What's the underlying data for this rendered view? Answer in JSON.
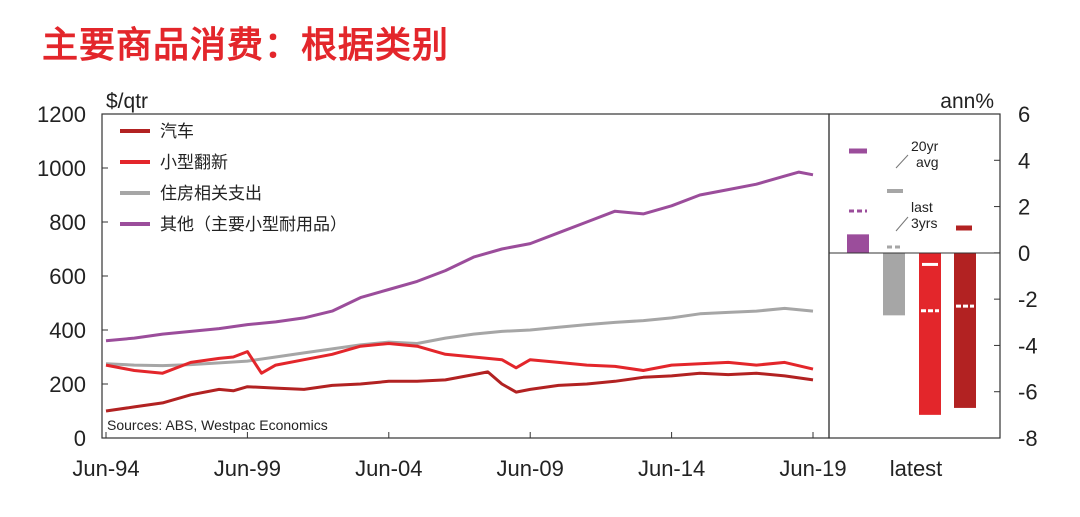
{
  "title": "主要商品消费：根据类别",
  "chart_data": [
    {
      "type": "line",
      "ylabel": "$/qtr",
      "ylim": [
        0,
        1200
      ],
      "yticks": [
        0,
        200,
        400,
        600,
        800,
        1000,
        1200
      ],
      "xticks": [
        "Jun-94",
        "Jun-99",
        "Jun-04",
        "Jun-09",
        "Jun-14",
        "Jun-19"
      ],
      "xlim": [
        1994.5,
        2019.5
      ],
      "grid": false,
      "legend_position": "top-left",
      "source": "Sources: ABS, Westpac Economics",
      "series": [
        {
          "name": "汽车",
          "color": "#b22222",
          "x": [
            1994.5,
            1995.5,
            1996.5,
            1997.5,
            1998.5,
            1999.0,
            1999.5,
            2000.5,
            2001.5,
            2002.5,
            2003.5,
            2004.5,
            2005.5,
            2006.5,
            2007.5,
            2008.0,
            2008.5,
            2009.0,
            2009.5,
            2010.5,
            2011.5,
            2012.5,
            2013.5,
            2014.5,
            2015.5,
            2016.5,
            2017.5,
            2018.5,
            2019.5
          ],
          "y": [
            100,
            115,
            130,
            160,
            180,
            175,
            190,
            185,
            180,
            195,
            200,
            210,
            210,
            215,
            235,
            245,
            200,
            170,
            180,
            195,
            200,
            210,
            225,
            230,
            240,
            235,
            240,
            230,
            215
          ]
        },
        {
          "name": "小型翻新",
          "color": "#e3262b",
          "x": [
            1994.5,
            1995.5,
            1996.5,
            1997.5,
            1998.5,
            1999.0,
            1999.5,
            2000.0,
            2000.5,
            2001.5,
            2002.5,
            2003.5,
            2004.5,
            2005.5,
            2006.5,
            2007.5,
            2008.5,
            2009.0,
            2009.5,
            2010.5,
            2011.5,
            2012.5,
            2013.5,
            2014.5,
            2015.5,
            2016.5,
            2017.5,
            2018.5,
            2019.5
          ],
          "y": [
            270,
            250,
            240,
            280,
            295,
            300,
            320,
            240,
            270,
            290,
            310,
            340,
            350,
            340,
            310,
            300,
            290,
            260,
            290,
            280,
            270,
            265,
            250,
            270,
            275,
            280,
            270,
            280,
            255
          ]
        },
        {
          "name": "住房相关支出",
          "color": "#a6a6a6",
          "x": [
            1994.5,
            1995.5,
            1996.5,
            1997.5,
            1998.5,
            1999.5,
            2000.5,
            2001.5,
            2002.5,
            2003.5,
            2004.5,
            2005.5,
            2006.5,
            2007.5,
            2008.5,
            2009.5,
            2010.5,
            2011.5,
            2012.5,
            2013.5,
            2014.5,
            2015.5,
            2016.5,
            2017.5,
            2018.5,
            2019.5
          ],
          "y": [
            275,
            270,
            268,
            272,
            278,
            285,
            300,
            315,
            330,
            345,
            355,
            350,
            370,
            385,
            395,
            400,
            410,
            420,
            428,
            435,
            445,
            460,
            465,
            470,
            480,
            470
          ]
        },
        {
          "name": "其他（主要小型耐用品）",
          "color": "#9b4d9b",
          "x": [
            1994.5,
            1995.5,
            1996.5,
            1997.5,
            1998.5,
            1999.5,
            2000.5,
            2001.5,
            2002.5,
            2003.5,
            2004.5,
            2005.5,
            2006.5,
            2007.5,
            2008.5,
            2009.5,
            2010.5,
            2011.5,
            2012.5,
            2013.5,
            2014.5,
            2015.5,
            2016.5,
            2017.5,
            2018.5,
            2019.0,
            2019.5
          ],
          "y": [
            360,
            370,
            385,
            395,
            405,
            420,
            430,
            445,
            470,
            520,
            550,
            580,
            620,
            670,
            700,
            720,
            760,
            800,
            840,
            830,
            860,
            900,
            920,
            940,
            970,
            985,
            975
          ]
        }
      ]
    },
    {
      "type": "bar",
      "ylabel": "ann%",
      "ylim": [
        -8,
        6
      ],
      "yticks": [
        -8,
        -6,
        -4,
        -2,
        0,
        2,
        4,
        6
      ],
      "categories": [
        "latest"
      ],
      "series": [
        {
          "name": "其他（主要小型耐用品）",
          "color": "#9b4d9b",
          "value": 0.8
        },
        {
          "name": "住房相关支出",
          "color": "#a6a6a6",
          "value": -2.7
        },
        {
          "name": "小型翻新",
          "color": "#e3262b",
          "value": -7.0,
          "last_3yrs": -2.5,
          "avg_20yr": -0.5
        },
        {
          "name": "汽车",
          "color": "#b22222",
          "value": -6.7,
          "last_3yrs": -2.3
        }
      ],
      "key": {
        "avg": "20yr avg",
        "last": "last 3yrs"
      }
    }
  ]
}
